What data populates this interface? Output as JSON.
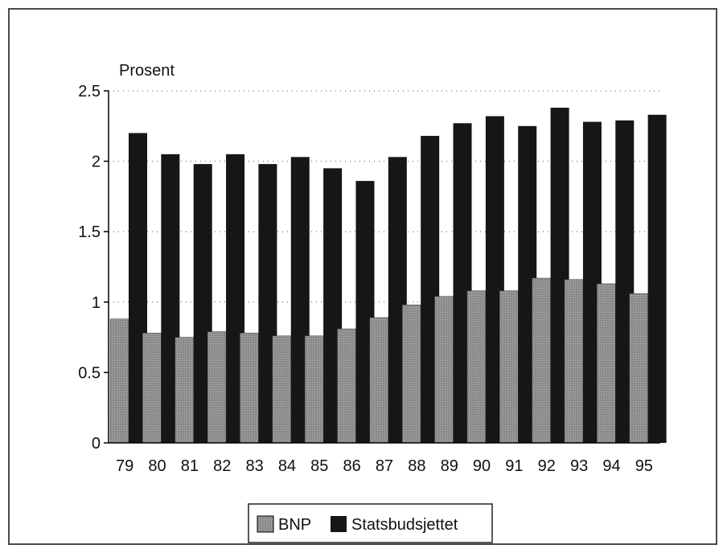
{
  "chart_data": {
    "type": "bar",
    "ylabel": "Prosent",
    "categories": [
      "79",
      "80",
      "81",
      "82",
      "83",
      "84",
      "85",
      "86",
      "87",
      "88",
      "89",
      "90",
      "91",
      "92",
      "93",
      "94",
      "95"
    ],
    "series": [
      {
        "name": "BNP",
        "color": "#8c8c8c",
        "values": [
          0.88,
          0.78,
          0.75,
          0.79,
          0.78,
          0.76,
          0.76,
          0.81,
          0.89,
          0.98,
          1.04,
          1.08,
          1.08,
          1.17,
          1.16,
          1.13,
          1.06
        ]
      },
      {
        "name": "Statsbudsjettet",
        "color": "#161616",
        "values": [
          2.2,
          2.05,
          1.98,
          2.05,
          1.98,
          2.03,
          1.95,
          1.86,
          2.03,
          2.18,
          2.27,
          2.32,
          2.25,
          2.38,
          2.28,
          2.29,
          2.33
        ]
      }
    ],
    "ylim": [
      0,
      2.5
    ],
    "yticks": [
      "0",
      "0.5",
      "1",
      "1.5",
      "2",
      "2.5"
    ],
    "grid": "horizontal-dotted",
    "legend_position": "bottom-center"
  }
}
